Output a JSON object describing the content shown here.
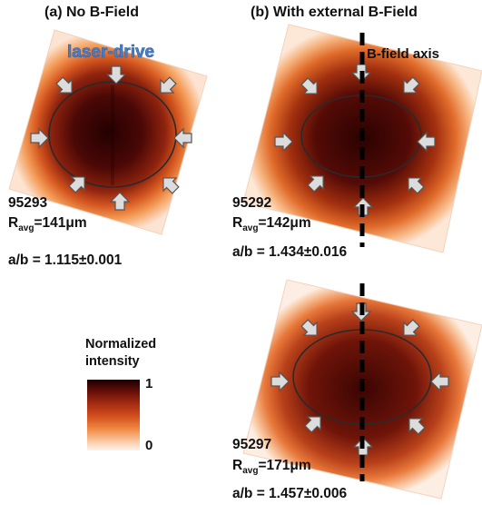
{
  "panel_a": {
    "heading": "(a) No B-Field",
    "annotation": "laser-drive",
    "shot": "95293",
    "radius_label": "R",
    "radius_sub": "avg",
    "radius_value": "=141μm",
    "ratio": "a/b = 1.115±0.001"
  },
  "panel_b": {
    "heading": "(b) With external B-Field",
    "axis_label": "B-field axis",
    "top": {
      "shot": "95292",
      "radius_label": "R",
      "radius_sub": "avg",
      "radius_value": "=142μm",
      "ratio": "a/b = 1.434±0.016"
    },
    "bottom": {
      "shot": "95297",
      "radius_label": "R",
      "radius_sub": "avg",
      "radius_value": "=171μm",
      "ratio": "a/b = 1.457±0.006"
    }
  },
  "colorbar": {
    "title_line1": "Normalized",
    "title_line2": "intensity",
    "max": "1",
    "min": "0",
    "colors": [
      "#1a0000",
      "#9e2810",
      "#f08a45",
      "#fef3ec"
    ]
  }
}
